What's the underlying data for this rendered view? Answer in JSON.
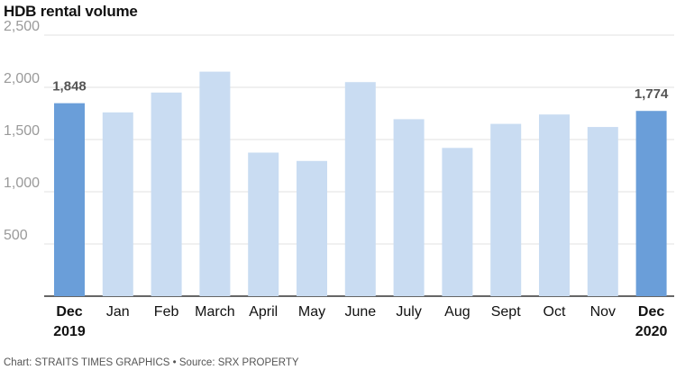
{
  "chart_data": {
    "type": "bar",
    "title": "HDB rental volume",
    "categories": [
      [
        "Dec",
        "2019"
      ],
      [
        "Jan"
      ],
      [
        "Feb"
      ],
      [
        "March"
      ],
      [
        "April"
      ],
      [
        "May"
      ],
      [
        "June"
      ],
      [
        "July"
      ],
      [
        "Aug"
      ],
      [
        "Sept"
      ],
      [
        "Oct"
      ],
      [
        "Nov"
      ],
      [
        "Dec",
        "2020"
      ]
    ],
    "values": [
      1848,
      1760,
      1950,
      2150,
      1375,
      1295,
      2050,
      1695,
      1420,
      1650,
      1740,
      1620,
      1774
    ],
    "highlighted": [
      0,
      12
    ],
    "data_labels": [
      {
        "index": 0,
        "text": "1,848"
      },
      {
        "index": 12,
        "text": "1,774"
      }
    ],
    "ylim": [
      0,
      2500
    ],
    "yticks": [
      500,
      1000,
      1500,
      2000,
      2500
    ],
    "ytick_labels": [
      "500",
      "1,000",
      "1,500",
      "2,000",
      "2,500"
    ],
    "grid": true,
    "colors": {
      "highlight": "#6a9ed9",
      "normal": "#c9dcf2",
      "grid": "#e2e2e2",
      "axis": "#333333"
    }
  },
  "footer": "Chart: STRAITS TIMES GRAPHICS • Source: SRX PROPERTY"
}
